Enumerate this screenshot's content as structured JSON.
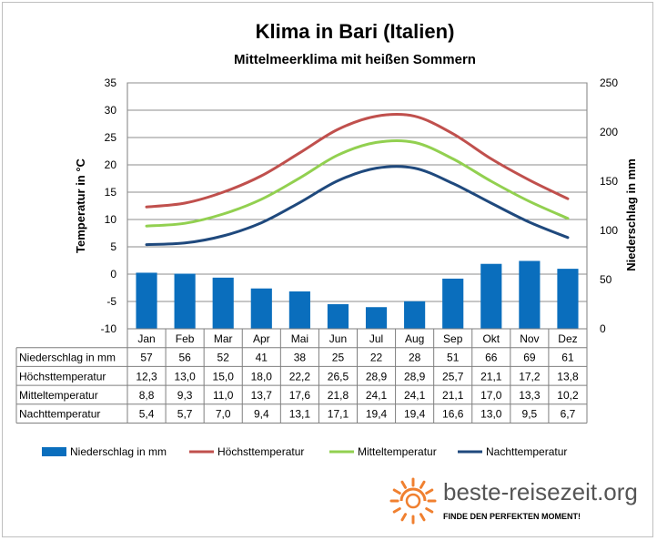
{
  "chart_data": {
    "type": "bar+line",
    "title": "Klima in Bari (Italien)",
    "subtitle": "Mittelmeerklima mit heißen Sommern",
    "categories": [
      "Jan",
      "Feb",
      "Mar",
      "Apr",
      "Mai",
      "Jun",
      "Jul",
      "Aug",
      "Sep",
      "Okt",
      "Nov",
      "Dez"
    ],
    "y_left": {
      "label": "Temperatur in °C",
      "range": [
        -10,
        35
      ],
      "ticks": [
        35,
        30,
        25,
        20,
        15,
        10,
        5,
        0,
        -5,
        -10
      ]
    },
    "y_right": {
      "label": "Niederschlag in mm",
      "range": [
        0,
        250
      ],
      "ticks": [
        250,
        200,
        150,
        100,
        50,
        0
      ]
    },
    "grid": true,
    "legend_position": "bottom",
    "series": [
      {
        "name": "Niederschlag in mm",
        "kind": "bar",
        "axis": "right",
        "color": "#0a6ebd",
        "values": [
          57,
          56,
          52,
          41,
          38,
          25,
          22,
          28,
          51,
          66,
          69,
          61
        ]
      },
      {
        "name": "Höchsttemperatur",
        "kind": "line",
        "axis": "left",
        "color": "#c0504d",
        "values": [
          12.3,
          13.0,
          15.0,
          18.0,
          22.2,
          26.5,
          28.9,
          28.9,
          25.7,
          21.1,
          17.2,
          13.8
        ]
      },
      {
        "name": "Mitteltemperatur",
        "kind": "line",
        "axis": "left",
        "color": "#92d050",
        "values": [
          8.8,
          9.3,
          11.0,
          13.7,
          17.6,
          21.8,
          24.1,
          24.1,
          21.1,
          17.0,
          13.3,
          10.2
        ]
      },
      {
        "name": "Nachttemperatur",
        "kind": "line",
        "axis": "left",
        "color": "#1f497d",
        "values": [
          5.4,
          5.7,
          7.0,
          9.4,
          13.1,
          17.1,
          19.4,
          19.4,
          16.6,
          13.0,
          9.5,
          6.7
        ]
      }
    ],
    "table": {
      "rows": [
        {
          "label": "Niederschlag in mm",
          "cells": [
            "57",
            "56",
            "52",
            "41",
            "38",
            "25",
            "22",
            "28",
            "51",
            "66",
            "69",
            "61"
          ]
        },
        {
          "label": "Höchsttemperatur",
          "cells": [
            "12,3",
            "13,0",
            "15,0",
            "18,0",
            "22,2",
            "26,5",
            "28,9",
            "28,9",
            "25,7",
            "21,1",
            "17,2",
            "13,8"
          ]
        },
        {
          "label": "Mitteltemperatur",
          "cells": [
            "8,8",
            "9,3",
            "11,0",
            "13,7",
            "17,6",
            "21,8",
            "24,1",
            "24,1",
            "21,1",
            "17,0",
            "13,3",
            "10,2"
          ]
        },
        {
          "label": "Nachttemperatur",
          "cells": [
            "5,4",
            "5,7",
            "7,0",
            "9,4",
            "13,1",
            "17,1",
            "19,4",
            "19,4",
            "16,6",
            "13,0",
            "9,5",
            "6,7"
          ]
        }
      ]
    }
  },
  "brand": {
    "name": "beste-reisezeit.org",
    "slogan": "FINDE DEN PERFEKTEN MOMENT!",
    "logo_icon": "sun-icon",
    "logo_color": "#f08030"
  }
}
